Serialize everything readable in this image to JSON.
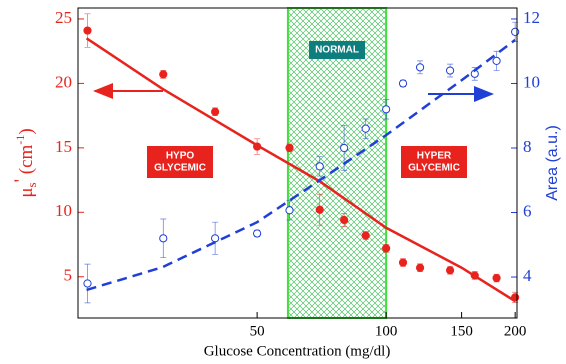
{
  "chart_data": {
    "type": "scatter",
    "xlabel": "Glucose Concentration (mg/dl)",
    "ylabel": [
      "μ",
      "s",
      "'",
      " (cm",
      "-1",
      ")"
    ],
    "y2label": "Area (a.u.)",
    "xscale": "log",
    "xlim": [
      19.1,
      202
    ],
    "xticks": [
      50,
      100,
      150,
      200
    ],
    "ylim": [
      1.8,
      25.85
    ],
    "yticks": [
      5,
      10,
      15,
      20,
      25
    ],
    "y2lim": [
      2.73,
      12.34
    ],
    "y2ticks": [
      4,
      6,
      8,
      10,
      12
    ],
    "normal_range": [
      59,
      100
    ],
    "annotations": {
      "normal": "NORMAL",
      "hypo": [
        "HYPO",
        "GLYCEMIC"
      ],
      "hyper": [
        "HYPER",
        "GLYCEMIC"
      ]
    },
    "series": [
      {
        "name": "μs' data",
        "color": "#e8231d",
        "kind": "points",
        "axis": "y",
        "x": [
          20.1,
          30.2,
          39.9,
          50,
          59.5,
          70,
          79.8,
          89.6,
          100,
          109.5,
          120,
          141,
          161,
          181,
          200
        ],
        "values": [
          24.1,
          20.7,
          17.8,
          15.1,
          15.0,
          10.2,
          9.4,
          8.2,
          7.2,
          6.1,
          5.7,
          5.5,
          5.1,
          4.9,
          3.4
        ],
        "errors": [
          1.3,
          0.3,
          0.3,
          0.6,
          0.3,
          1.2,
          0.5,
          0.3,
          0.3,
          0.3,
          0.3,
          0.3,
          0.3,
          0.3,
          0.4
        ]
      },
      {
        "name": "μs' fit",
        "color": "#e8231d",
        "kind": "line",
        "axis": "y",
        "x": [
          20,
          30,
          50,
          70,
          100,
          150,
          200
        ],
        "values": [
          23.5,
          19.6,
          15.2,
          12.4,
          8.8,
          5.7,
          3.1
        ]
      },
      {
        "name": "Area data",
        "color": "#1f3fd6",
        "kind": "open-points",
        "axis": "y2",
        "x": [
          20.1,
          30.2,
          39.9,
          50,
          59.5,
          70,
          79.8,
          89.6,
          100,
          109.5,
          120,
          141,
          161,
          181,
          200
        ],
        "values": [
          3.8,
          5.2,
          5.2,
          5.35,
          6.07,
          7.43,
          8.0,
          8.6,
          9.2,
          10.0,
          10.5,
          10.4,
          10.3,
          10.7,
          11.6
        ],
        "errors": [
          0.6,
          0.6,
          0.5,
          0.1,
          0.3,
          0.3,
          0.7,
          0.3,
          0.3,
          0.1,
          0.2,
          0.2,
          0.2,
          0.3,
          0.3
        ]
      },
      {
        "name": "Area fit",
        "color": "#1f3fd6",
        "kind": "dashed-line",
        "axis": "y2",
        "x": [
          20,
          30,
          50,
          70,
          100,
          150,
          200
        ],
        "values": [
          3.6,
          4.3,
          5.7,
          7.0,
          8.4,
          10.1,
          11.35
        ]
      }
    ]
  }
}
